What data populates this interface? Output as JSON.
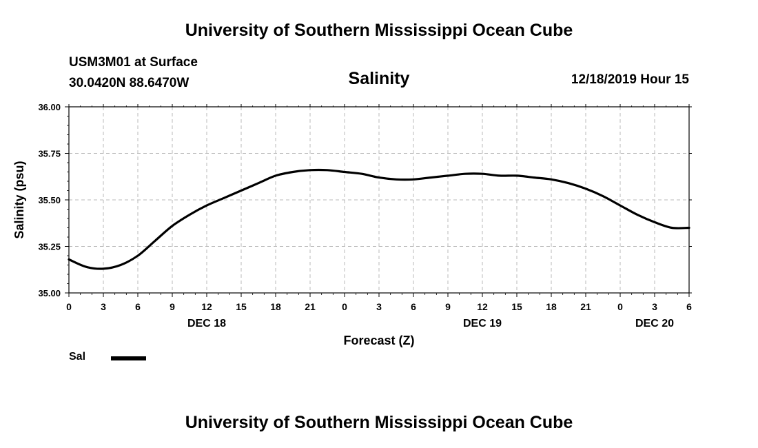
{
  "header": {
    "title": "University of Southern Mississippi Ocean Cube",
    "station_line1": "USM3M01 at Surface",
    "station_line2": "30.0420N 88.6470W",
    "chart_title": "Salinity",
    "datetime": "12/18/2019 Hour 15"
  },
  "footer": {
    "title": "University of Southern Mississippi Ocean Cube"
  },
  "legend": {
    "label": "Sal",
    "color": "#000000"
  },
  "chart_data": {
    "type": "line",
    "title": "Salinity",
    "xlabel": "Forecast (Z)",
    "ylabel": "Salinity (psu)",
    "ylim": [
      35.0,
      36.0
    ],
    "yticks": [
      "35.00",
      "35.25",
      "35.50",
      "35.75",
      "36.00"
    ],
    "xticks": [
      "0",
      "3",
      "6",
      "9",
      "12",
      "15",
      "18",
      "21",
      "0",
      "3",
      "6",
      "9",
      "12",
      "15",
      "18",
      "21",
      "0",
      "3",
      "6"
    ],
    "date_labels": [
      {
        "label": "DEC 18",
        "at_tick": 4
      },
      {
        "label": "DEC 19",
        "at_tick": 12
      },
      {
        "label": "DEC 20",
        "at_tick": 17
      }
    ],
    "grid": true,
    "legend_position": "bottom-left",
    "series": [
      {
        "name": "Sal",
        "color": "#000000",
        "x": [
          0,
          1.5,
          3,
          4.5,
          6,
          7.5,
          9,
          10.5,
          12,
          13.5,
          15,
          16.5,
          18,
          19.5,
          21,
          22.5,
          24,
          25.5,
          27,
          28.5,
          30,
          31.5,
          33,
          34.5,
          36,
          37.5,
          39,
          40.5,
          42,
          43.5,
          45,
          46.5,
          48,
          49.5,
          51,
          52.5,
          54
        ],
        "values": [
          35.18,
          35.14,
          35.13,
          35.15,
          35.2,
          35.28,
          35.36,
          35.42,
          35.47,
          35.51,
          35.55,
          35.59,
          35.63,
          35.65,
          35.66,
          35.66,
          35.65,
          35.64,
          35.62,
          35.61,
          35.61,
          35.62,
          35.63,
          35.64,
          35.64,
          35.63,
          35.63,
          35.62,
          35.61,
          35.59,
          35.56,
          35.52,
          35.47,
          35.42,
          35.38,
          35.35,
          35.35
        ]
      }
    ]
  }
}
